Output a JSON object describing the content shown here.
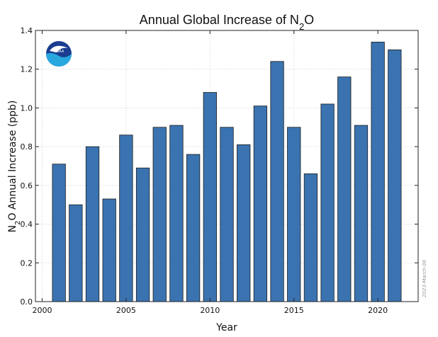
{
  "chart_data": {
    "type": "bar",
    "title": "Annual Global Increase of N₂O",
    "title_parts": [
      "Annual Global Increase of N",
      "2",
      "O"
    ],
    "xlabel": "Year",
    "ylabel": "N₂O Annual Increase (ppb)",
    "ylabel_parts": [
      "N",
      "2",
      "O Annual Increase (ppb)"
    ],
    "date_stamp": "2023-March-06",
    "logo_text": "NOAA",
    "xlim": [
      1999.6,
      2022.4
    ],
    "ylim": [
      0,
      1.4
    ],
    "x_ticks": [
      2000,
      2005,
      2010,
      2015,
      2020
    ],
    "y_ticks": [
      0.0,
      0.2,
      0.4,
      0.6,
      0.8,
      1.0,
      1.2,
      1.4
    ],
    "grid": true,
    "bar_color": "#3a73b0",
    "x": [
      2001,
      2002,
      2003,
      2004,
      2005,
      2006,
      2007,
      2008,
      2009,
      2010,
      2011,
      2012,
      2013,
      2014,
      2015,
      2016,
      2017,
      2018,
      2019,
      2020,
      2021
    ],
    "values": [
      0.71,
      0.5,
      0.8,
      0.53,
      0.86,
      0.69,
      0.9,
      0.91,
      0.76,
      1.08,
      0.9,
      0.81,
      1.01,
      1.24,
      0.9,
      0.66,
      1.02,
      1.16,
      0.91,
      1.34,
      1.3
    ]
  }
}
